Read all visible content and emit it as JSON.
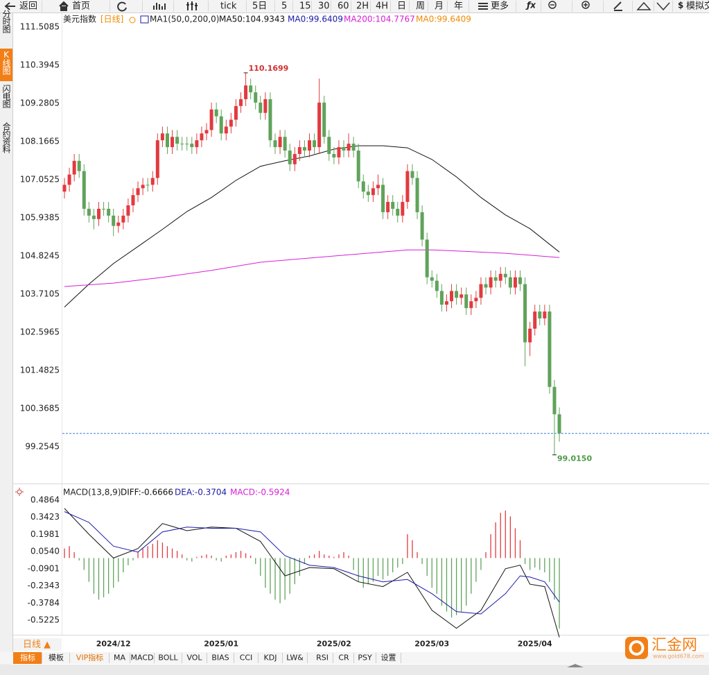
{
  "toolbar": [
    "返回",
    "首页",
    "tick",
    "5日",
    "5",
    "15",
    "30",
    "60",
    "2H",
    "4H",
    "日",
    "周",
    "月",
    "年",
    "更多",
    "模拟交"
  ],
  "side_tabs": [
    "分时图",
    "K线图",
    "闪电图",
    "合约资料"
  ],
  "bottom_tabs": [
    "指标",
    "模板",
    "VIP指标",
    "MA",
    "MACD",
    "BOLL",
    "VOL",
    "BIAS",
    "CCI",
    "KDJ",
    "LW&",
    "RSI",
    "CR",
    "PSY",
    "设置"
  ],
  "period_button": "日线 ▲",
  "logo": {
    "name": "汇金网",
    "url": "www.gold678.com"
  },
  "chart_data": {
    "type": "candlestick",
    "title": "美元指数",
    "period_label": "[日线]",
    "indicator_name": "MA1(50,0,200,0)",
    "legend": [
      {
        "label": "MA50:104.9343",
        "value": 104.9343,
        "color": "#111111"
      },
      {
        "label": "MA0:99.6409",
        "value": 99.6409,
        "color": "#1a1aa8"
      },
      {
        "label": "MA200:104.7767",
        "value": 104.7767,
        "color": "#d61fd6"
      },
      {
        "label": "MA0:99.6409",
        "value": 99.6409,
        "color": "#f08a00"
      }
    ],
    "ylim": [
      98.32,
      111.85
    ],
    "yticks": [
      111.5085,
      110.3945,
      109.2805,
      108.1665,
      107.0525,
      105.9385,
      104.8245,
      103.7105,
      102.5965,
      101.4825,
      100.3685,
      99.2545
    ],
    "xlim": [
      -0.6,
      130.9
    ],
    "xticks": [
      {
        "value": 10,
        "label": "2024/12"
      },
      {
        "value": 32,
        "label": "2025/01"
      },
      {
        "value": 55,
        "label": "2025/02"
      },
      {
        "value": 75,
        "label": "2025/03"
      },
      {
        "value": 96,
        "label": "2025/04"
      }
    ],
    "up_color": "#e23a3f",
    "down_color": "#5fa35a",
    "ohlc": [
      [
        106.7,
        107.1,
        106.5,
        106.9
      ],
      [
        106.9,
        107.4,
        106.7,
        107.2
      ],
      [
        107.2,
        107.8,
        107.0,
        107.6
      ],
      [
        107.6,
        107.8,
        107.1,
        107.3
      ],
      [
        107.3,
        107.5,
        106.0,
        106.2
      ],
      [
        106.2,
        106.4,
        105.8,
        106.0
      ],
      [
        106.0,
        106.2,
        105.6,
        105.9
      ],
      [
        105.9,
        106.4,
        105.7,
        106.2
      ],
      [
        106.2,
        106.4,
        106.0,
        106.2
      ],
      [
        106.2,
        106.4,
        105.8,
        106.0
      ],
      [
        106.0,
        106.2,
        105.4,
        105.7
      ],
      [
        105.7,
        106.0,
        105.5,
        105.8
      ],
      [
        105.8,
        106.2,
        105.6,
        106.0
      ],
      [
        106.0,
        106.5,
        105.8,
        106.3
      ],
      [
        106.3,
        106.8,
        106.1,
        106.6
      ],
      [
        106.6,
        107.0,
        106.4,
        106.8
      ],
      [
        106.8,
        107.1,
        106.6,
        106.9
      ],
      [
        106.9,
        107.1,
        106.7,
        106.9
      ],
      [
        106.9,
        107.3,
        106.7,
        107.1
      ],
      [
        107.1,
        108.4,
        106.9,
        108.2
      ],
      [
        108.2,
        108.6,
        108.0,
        108.4
      ],
      [
        108.4,
        108.6,
        107.8,
        108.0
      ],
      [
        108.0,
        108.5,
        107.8,
        108.3
      ],
      [
        108.3,
        108.5,
        107.9,
        108.1
      ],
      [
        108.1,
        108.3,
        107.9,
        108.1
      ],
      [
        108.1,
        108.3,
        107.9,
        108.1
      ],
      [
        108.1,
        108.3,
        107.8,
        108.0
      ],
      [
        108.0,
        108.4,
        107.8,
        108.2
      ],
      [
        108.2,
        108.6,
        108.0,
        108.4
      ],
      [
        108.4,
        108.7,
        108.2,
        108.5
      ],
      [
        108.5,
        109.3,
        108.3,
        109.1
      ],
      [
        109.1,
        109.3,
        108.7,
        108.9
      ],
      [
        108.9,
        109.1,
        108.2,
        108.4
      ],
      [
        108.4,
        108.8,
        108.2,
        108.6
      ],
      [
        108.6,
        109.0,
        108.4,
        108.8
      ],
      [
        108.8,
        109.4,
        108.6,
        109.2
      ],
      [
        109.2,
        109.6,
        109.0,
        109.4
      ],
      [
        109.4,
        110.1699,
        109.2,
        109.8
      ],
      [
        109.8,
        110.0,
        109.4,
        109.6
      ],
      [
        109.6,
        109.8,
        109.1,
        109.3
      ],
      [
        109.3,
        109.5,
        108.8,
        109.0
      ],
      [
        109.0,
        109.6,
        108.8,
        109.4
      ],
      [
        109.4,
        109.6,
        108.0,
        108.2
      ],
      [
        108.2,
        108.4,
        107.8,
        108.0
      ],
      [
        108.0,
        108.5,
        107.8,
        108.3
      ],
      [
        108.3,
        108.5,
        107.7,
        107.9
      ],
      [
        107.9,
        108.1,
        107.3,
        107.5
      ],
      [
        107.5,
        108.0,
        107.3,
        107.8
      ],
      [
        107.8,
        108.2,
        107.6,
        108.0
      ],
      [
        108.0,
        108.2,
        107.7,
        107.9
      ],
      [
        107.9,
        108.4,
        107.7,
        108.2
      ],
      [
        108.2,
        108.4,
        107.8,
        108.0
      ],
      [
        108.0,
        110.0,
        107.8,
        109.3
      ],
      [
        109.3,
        109.5,
        108.1,
        108.3
      ],
      [
        108.3,
        108.5,
        107.6,
        107.8
      ],
      [
        107.8,
        108.0,
        107.5,
        107.7
      ],
      [
        107.7,
        108.2,
        107.5,
        108.0
      ],
      [
        108.0,
        108.2,
        107.7,
        107.9
      ],
      [
        107.9,
        108.4,
        107.7,
        108.1
      ],
      [
        108.1,
        108.3,
        107.7,
        107.9
      ],
      [
        107.9,
        108.1,
        106.8,
        107.0
      ],
      [
        107.0,
        107.2,
        106.5,
        106.7
      ],
      [
        106.7,
        106.9,
        106.4,
        106.6
      ],
      [
        106.6,
        107.0,
        106.4,
        106.8
      ],
      [
        106.8,
        107.2,
        106.6,
        106.9
      ],
      [
        106.9,
        107.1,
        105.9,
        106.1
      ],
      [
        106.1,
        106.6,
        105.9,
        106.4
      ],
      [
        106.4,
        106.6,
        106.0,
        106.2
      ],
      [
        106.2,
        106.4,
        105.8,
        106.0
      ],
      [
        106.0,
        106.6,
        105.8,
        106.4
      ],
      [
        106.4,
        107.5,
        106.2,
        107.3
      ],
      [
        107.3,
        107.5,
        106.9,
        107.1
      ],
      [
        107.1,
        107.3,
        105.9,
        106.1
      ],
      [
        106.1,
        106.3,
        105.1,
        105.3
      ],
      [
        105.3,
        105.5,
        104.0,
        104.2
      ],
      [
        104.2,
        104.4,
        103.9,
        104.1
      ],
      [
        104.1,
        104.3,
        103.6,
        103.8
      ],
      [
        103.8,
        104.0,
        103.2,
        103.4
      ],
      [
        103.4,
        103.7,
        103.2,
        103.5
      ],
      [
        103.5,
        104.0,
        103.3,
        103.8
      ],
      [
        103.8,
        104.0,
        103.4,
        103.6
      ],
      [
        103.6,
        103.9,
        103.4,
        103.7
      ],
      [
        103.7,
        103.9,
        103.1,
        103.3
      ],
      [
        103.3,
        103.7,
        103.1,
        103.5
      ],
      [
        103.5,
        103.8,
        103.3,
        103.6
      ],
      [
        103.6,
        104.2,
        103.4,
        104.0
      ],
      [
        104.0,
        104.2,
        103.7,
        103.9
      ],
      [
        103.9,
        104.4,
        103.7,
        104.2
      ],
      [
        104.2,
        104.4,
        103.9,
        104.1
      ],
      [
        104.1,
        104.5,
        103.9,
        104.3
      ],
      [
        104.3,
        104.5,
        104.0,
        104.2
      ],
      [
        104.2,
        104.4,
        103.7,
        103.9
      ],
      [
        103.9,
        104.4,
        103.7,
        104.2
      ],
      [
        104.2,
        104.4,
        103.8,
        104.0
      ],
      [
        104.0,
        104.2,
        101.6,
        102.3
      ],
      [
        102.3,
        102.9,
        101.9,
        102.7
      ],
      [
        102.7,
        103.4,
        102.5,
        103.2
      ],
      [
        103.2,
        103.4,
        102.8,
        103.0
      ],
      [
        103.0,
        103.4,
        102.8,
        103.2
      ],
      [
        103.2,
        103.4,
        100.8,
        101.0
      ],
      [
        101.0,
        101.2,
        99.015,
        100.2
      ],
      [
        100.2,
        100.4,
        99.4,
        99.64
      ]
    ],
    "overlays": [
      {
        "legend": 0,
        "color": "#111111",
        "x": [
          0,
          5,
          10,
          15,
          20,
          25,
          30,
          35,
          40,
          45,
          50,
          55,
          60,
          65,
          70,
          75,
          80,
          85,
          90,
          95,
          100,
          101
        ],
        "values": [
          103.33,
          104.0,
          104.6,
          105.1,
          105.6,
          106.12,
          106.53,
          107.03,
          107.44,
          107.6,
          107.74,
          107.94,
          108.04,
          108.04,
          107.98,
          107.64,
          107.13,
          106.53,
          106.02,
          105.62,
          105.05,
          104.9343
        ]
      },
      {
        "legend": 2,
        "color": "#d61fd6",
        "x": [
          0,
          10,
          20,
          30,
          40,
          50,
          60,
          70,
          75,
          80,
          90,
          101
        ],
        "values": [
          103.93,
          104.03,
          104.2,
          104.4,
          104.64,
          104.76,
          104.88,
          105.0,
          105.0,
          104.97,
          104.9,
          104.7767
        ]
      }
    ],
    "last_price_line": {
      "legend": 1,
      "color": "#3a7bd5"
    },
    "annotations": [
      {
        "index": 37,
        "value": 110.1699,
        "label": "110.1699",
        "color": "#d03030"
      },
      {
        "index": 100,
        "value": 99.015,
        "label": "99.0150",
        "color": "#4e9a45"
      }
    ],
    "macd": {
      "title": "MACD(13,8,9)",
      "legend": [
        {
          "label": "DIFF:-0.6666",
          "value": -0.6666,
          "color": "#111111"
        },
        {
          "label": "DEA:-0.3704",
          "value": -0.3704,
          "color": "#1a1aa8"
        },
        {
          "label": "MACD:-0.5924",
          "value": -0.5924,
          "color": "#d61fd6"
        }
      ],
      "ylim": [
        -0.645,
        0.5914
      ],
      "yticks": [
        0.4864,
        0.3423,
        0.1981,
        {
          "value": 0.054,
          "label": "0.0540"
        },
        -0.0901,
        -0.2343,
        -0.3784,
        -0.5225
      ],
      "histogram": [
        0.08,
        0.1,
        0.05,
        -0.02,
        -0.1,
        -0.2,
        -0.3,
        -0.35,
        -0.33,
        -0.3,
        -0.25,
        -0.2,
        -0.12,
        -0.06,
        -0.02,
        0.05,
        0.08,
        0.1,
        0.12,
        0.15,
        0.13,
        0.1,
        0.08,
        0.06,
        0.03,
        -0.02,
        -0.03,
        0.01,
        0.02,
        0.03,
        0.02,
        -0.02,
        -0.03,
        0.02,
        0.03,
        0.05,
        0.06,
        0.04,
        0.02,
        -0.05,
        -0.15,
        -0.25,
        -0.3,
        -0.35,
        -0.38,
        -0.35,
        -0.3,
        -0.22,
        -0.15,
        -0.05,
        0.02,
        0.03,
        0.06,
        0.03,
        0.02,
        0.01,
        0.03,
        0.05,
        0.02,
        -0.1,
        -0.2,
        -0.25,
        -0.22,
        -0.2,
        -0.15,
        -0.18,
        -0.15,
        -0.12,
        -0.08,
        -0.05,
        0.2,
        0.15,
        0.05,
        -0.05,
        -0.15,
        -0.25,
        -0.3,
        -0.4,
        -0.45,
        -0.5,
        -0.48,
        -0.45,
        -0.4,
        -0.3,
        -0.2,
        -0.1,
        0.05,
        0.2,
        0.3,
        0.38,
        0.4,
        0.35,
        0.25,
        0.15,
        -0.05,
        -0.1,
        -0.08,
        -0.1,
        -0.12,
        -0.2,
        -0.35,
        -0.5924
      ],
      "x": [
        0,
        5,
        10,
        15,
        20,
        25,
        30,
        35,
        40,
        45,
        50,
        55,
        60,
        65,
        70,
        75,
        80,
        85,
        90,
        93,
        95,
        98,
        101
      ],
      "diff": [
        0.417,
        0.2,
        0.0,
        0.08,
        0.29,
        0.23,
        0.26,
        0.25,
        0.14,
        -0.15,
        -0.08,
        -0.09,
        -0.2,
        -0.24,
        -0.12,
        -0.44,
        -0.59,
        -0.44,
        -0.09,
        -0.06,
        -0.22,
        -0.24,
        -0.6666
      ],
      "dea": [
        0.39,
        0.3,
        0.1,
        0.05,
        0.22,
        0.26,
        0.25,
        0.25,
        0.22,
        0.02,
        -0.06,
        -0.08,
        -0.15,
        -0.2,
        -0.18,
        -0.3,
        -0.45,
        -0.47,
        -0.3,
        -0.15,
        -0.16,
        -0.2,
        -0.3704
      ]
    }
  }
}
